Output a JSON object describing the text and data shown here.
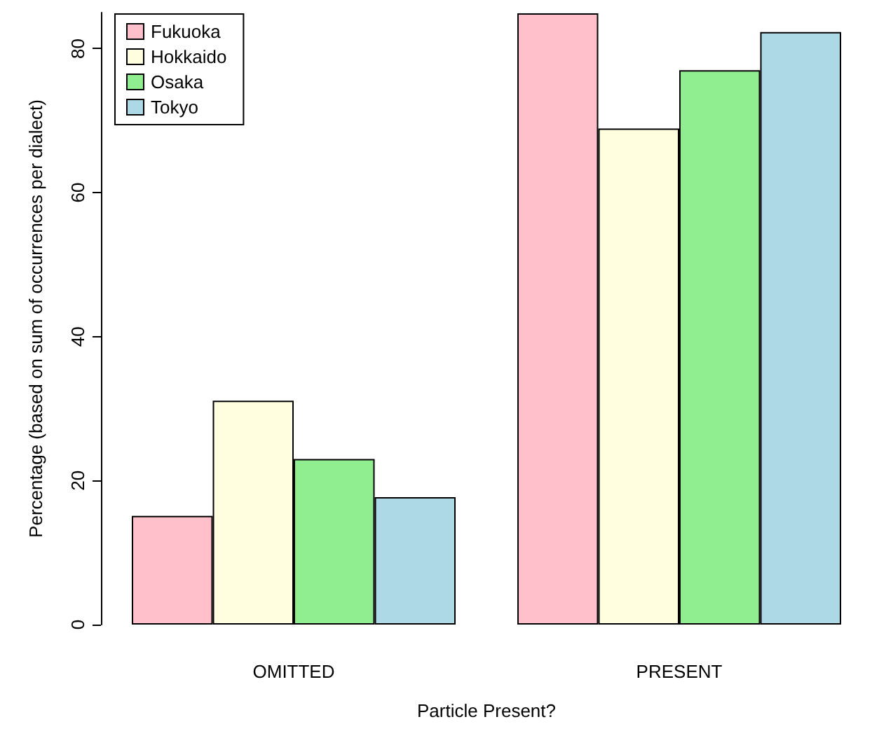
{
  "chart_data": {
    "type": "bar",
    "xlabel": "Particle Present?",
    "ylabel": "Percentage (based on sum of occurrences per dialect)",
    "categories": [
      "OMITTED",
      "PRESENT"
    ],
    "series": [
      {
        "name": "Fukuoka",
        "color": "#ffc0cb",
        "values": [
          15.1,
          84.9
        ]
      },
      {
        "name": "Hokkaido",
        "color": "#ffffe0",
        "values": [
          31.1,
          68.9
        ]
      },
      {
        "name": "Osaka",
        "color": "#90ee90",
        "values": [
          23,
          77
        ]
      },
      {
        "name": "Tokyo",
        "color": "#add8e6",
        "values": [
          17.7,
          82.3
        ]
      }
    ],
    "ylim": [
      0,
      85
    ],
    "yticks": [
      0,
      20,
      40,
      60,
      80
    ],
    "grid": false,
    "legend": "top left"
  }
}
